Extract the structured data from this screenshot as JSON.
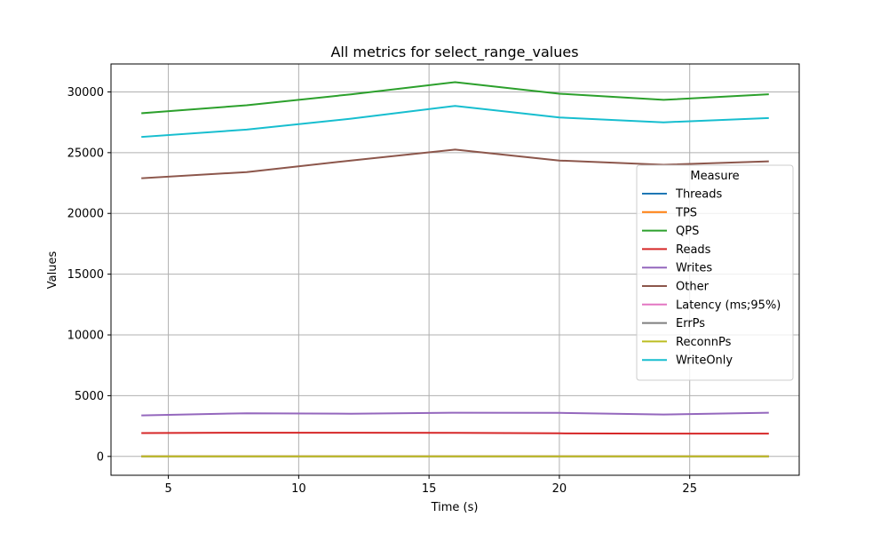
{
  "chart_data": {
    "type": "line",
    "title": "All metrics for select_range_values",
    "xlabel": "Time (s)",
    "ylabel": "Values",
    "xlim": [
      2.8,
      29.2
    ],
    "ylim": [
      -1550,
      32300
    ],
    "xticks": [
      5,
      10,
      15,
      20,
      25
    ],
    "yticks": [
      0,
      5000,
      10000,
      15000,
      20000,
      25000,
      30000
    ],
    "grid": true,
    "legend_title": "Measure",
    "legend_position": "center-right",
    "x": [
      4,
      8,
      12,
      16,
      20,
      24,
      28
    ],
    "series": [
      {
        "name": "Threads",
        "color": "#1f77b4",
        "values": [
          16,
          16,
          16,
          16,
          16,
          16,
          16
        ]
      },
      {
        "name": "TPS",
        "color": "#ff7f0e",
        "values": [
          20,
          20,
          20,
          20,
          20,
          20,
          20
        ]
      },
      {
        "name": "QPS",
        "color": "#2ca02c",
        "values": [
          28250,
          28900,
          29800,
          30800,
          29850,
          29350,
          29800
        ]
      },
      {
        "name": "Reads",
        "color": "#d62728",
        "values": [
          1920,
          1950,
          1950,
          1940,
          1900,
          1880,
          1880
        ]
      },
      {
        "name": "Writes",
        "color": "#9467bd",
        "values": [
          3380,
          3550,
          3520,
          3600,
          3580,
          3450,
          3600
        ]
      },
      {
        "name": "Other",
        "color": "#8c564b",
        "values": [
          22900,
          23400,
          24350,
          25250,
          24350,
          24000,
          24280
        ]
      },
      {
        "name": "Latency (ms;95%)",
        "color": "#e377c2",
        "values": [
          5,
          5,
          5,
          5,
          5,
          5,
          5
        ]
      },
      {
        "name": "ErrPs",
        "color": "#7f7f7f",
        "values": [
          0,
          0,
          0,
          0,
          0,
          0,
          0
        ]
      },
      {
        "name": "ReconnPs",
        "color": "#bcbd22",
        "values": [
          0,
          0,
          0,
          0,
          0,
          0,
          0
        ]
      },
      {
        "name": "WriteOnly",
        "color": "#17becf",
        "values": [
          26300,
          26900,
          27800,
          28850,
          27900,
          27500,
          27850
        ]
      }
    ]
  }
}
